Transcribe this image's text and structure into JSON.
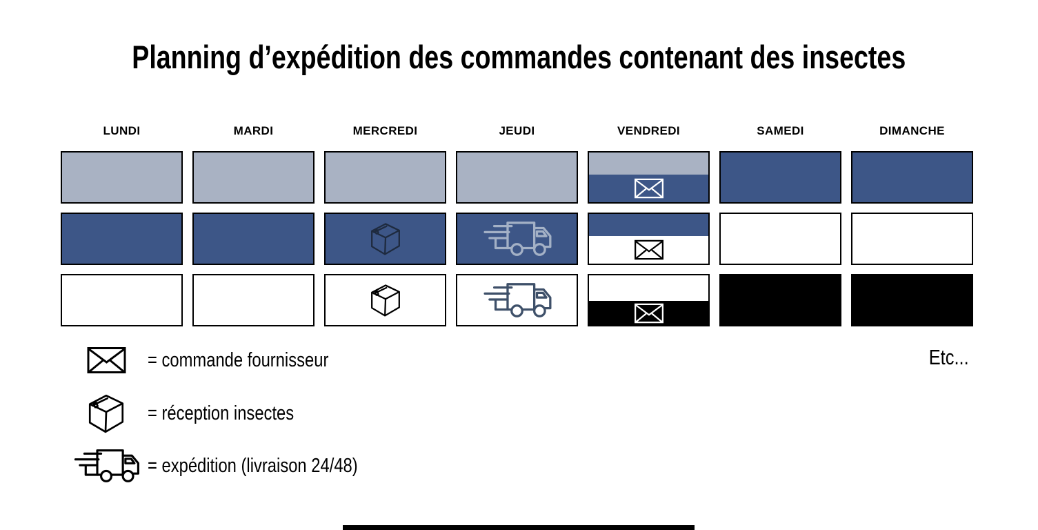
{
  "title": "Planning d’expédition des commandes contenant des insectes",
  "days": [
    "LUNDI",
    "MARDI",
    "MERCREDI",
    "JEUDI",
    "VENDREDI",
    "SAMEDI",
    "DIMANCHE"
  ],
  "colors": {
    "light": "#a9b2c3",
    "blue": "#3d5687",
    "white": "#ffffff",
    "black": "#000000",
    "box_dark": "#1e2a3e",
    "truck_light": "#a4b1c6",
    "truck_dark": "#3e5069"
  },
  "grid": {
    "rows": [
      {
        "cells": [
          {
            "fill": "light"
          },
          {
            "fill": "light"
          },
          {
            "fill": "light"
          },
          {
            "fill": "light"
          },
          {
            "split": [
              "light",
              "blue"
            ],
            "icon": "envelope",
            "icon_color": "white"
          },
          {
            "fill": "blue"
          },
          {
            "fill": "blue"
          }
        ]
      },
      {
        "cells": [
          {
            "fill": "blue"
          },
          {
            "fill": "blue"
          },
          {
            "fill": "blue",
            "icon": "box",
            "icon_color": "box_dark"
          },
          {
            "fill": "blue",
            "icon": "truck",
            "icon_color": "truck_light"
          },
          {
            "split": [
              "blue",
              "white"
            ],
            "icon": "envelope",
            "icon_color": "black"
          },
          {
            "fill": "white"
          },
          {
            "fill": "white"
          }
        ]
      },
      {
        "cells": [
          {
            "fill": "white"
          },
          {
            "fill": "white"
          },
          {
            "fill": "white",
            "icon": "box",
            "icon_color": "black"
          },
          {
            "fill": "white",
            "icon": "truck",
            "icon_color": "truck_dark"
          },
          {
            "split": [
              "white",
              "black"
            ],
            "icon": "envelope",
            "icon_color": "white"
          },
          {
            "fill": "black"
          },
          {
            "fill": "black"
          }
        ]
      }
    ]
  },
  "legend": {
    "items": [
      {
        "icon": "envelope",
        "label": "= commande fournisseur"
      },
      {
        "icon": "box",
        "label": "= réception insectes"
      },
      {
        "icon": "truck",
        "label": "= expédition (livraison 24/48)"
      }
    ]
  },
  "etc_label": "Etc..."
}
